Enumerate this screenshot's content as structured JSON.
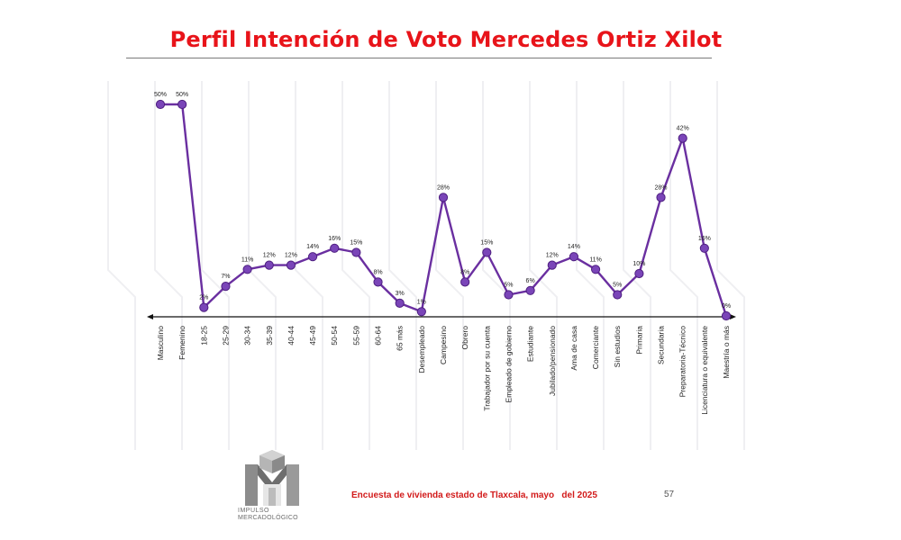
{
  "title": "Perfil Intención de Voto Mercedes Ortiz Xilot",
  "footer": {
    "text": "Encuesta de vivienda estado de Tlaxcala, mayo   del 2025",
    "page_number": "57"
  },
  "logo": {
    "line1": "IMPULSO",
    "line2": "MERCADOLÓGICO",
    "icon": "impulso-m-logo"
  },
  "colors": {
    "title": "#e8141a",
    "series_line": "#6a2fa0",
    "marker": "#7a45b8",
    "footer": "#d21a1a"
  },
  "chart_data": {
    "type": "line",
    "title": "Perfil Intención de Voto Mercedes Ortiz Xilot",
    "xlabel": "",
    "ylabel": "",
    "grid": false,
    "categories": [
      "Masculino",
      "Femenino",
      "18-25",
      "25-29",
      "30-34",
      "35-39",
      "40-44",
      "45-49",
      "50-54",
      "55-59",
      "60-64",
      "65 más",
      "Desempleado",
      "Campesino",
      "Obrero",
      "Trabajador por su cuenta",
      "Empleado de gobierno",
      "Estudiante",
      "Jubilado/pensionado",
      "Ama de casa",
      "Comerciante",
      "Sin estudios",
      "Primaria",
      "Secundaria",
      "Preparatoria-Técnico",
      "Licenciatura o equivalente",
      "Maestría o más"
    ],
    "values": [
      50,
      50,
      2,
      7,
      11,
      12,
      12,
      14,
      16,
      15,
      8,
      3,
      1,
      28,
      8,
      15,
      5,
      6,
      12,
      14,
      11,
      5,
      10,
      28,
      42,
      16,
      0
    ],
    "data_labels": [
      "50%",
      "50%",
      "2%",
      "7%",
      "11%",
      "12%",
      "12%",
      "14%",
      "16%",
      "15%",
      "8%",
      "3%",
      "1%",
      "28%",
      "8%",
      "15%",
      "5%",
      "6%",
      "12%",
      "14%",
      "11%",
      "5%",
      "10%",
      "28%",
      "42%",
      "16%",
      "0%"
    ],
    "ylim": [
      0,
      50
    ]
  }
}
